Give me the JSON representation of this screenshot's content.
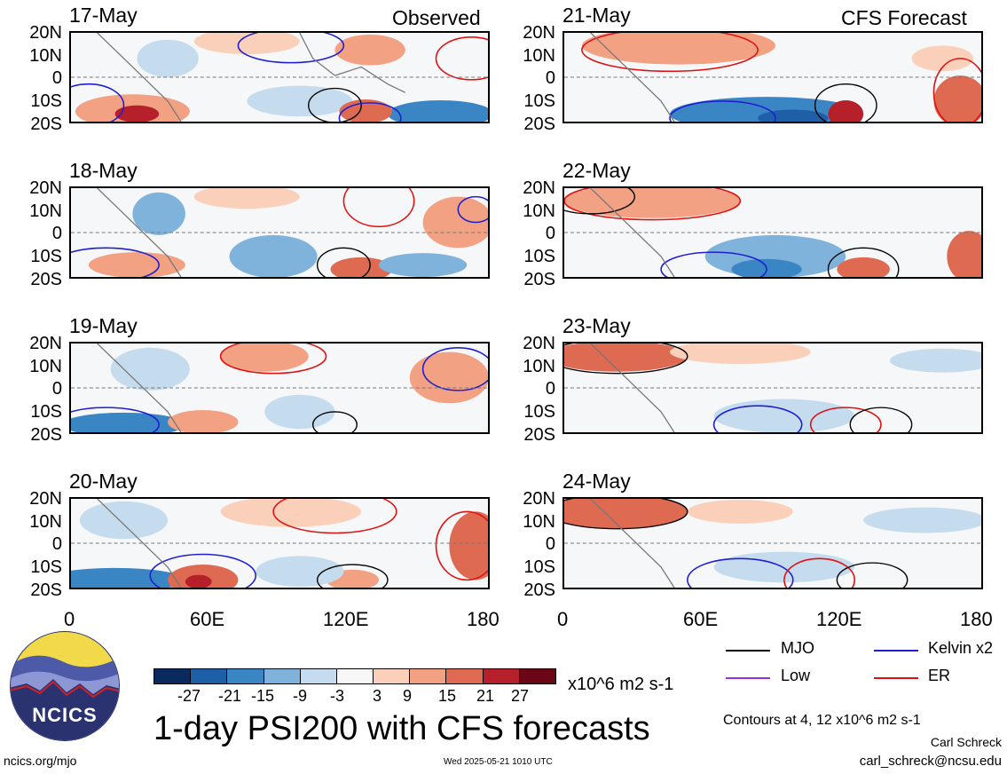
{
  "panels": [
    {
      "date": "17-May",
      "tag": "Observed"
    },
    {
      "date": "18-May",
      "tag": ""
    },
    {
      "date": "19-May",
      "tag": ""
    },
    {
      "date": "20-May",
      "tag": ""
    },
    {
      "date": "21-May",
      "tag": "CFS Forecast"
    },
    {
      "date": "22-May",
      "tag": ""
    },
    {
      "date": "23-May",
      "tag": ""
    },
    {
      "date": "24-May",
      "tag": ""
    }
  ],
  "lat_labels": [
    "20N",
    "10N",
    "0",
    "10S",
    "20S"
  ],
  "lon_labels": [
    "0",
    "60E",
    "120E",
    "180"
  ],
  "colorbar": {
    "labels": [
      "-27",
      "-21",
      "-15",
      "-9",
      "-3",
      "3",
      "9",
      "15",
      "21",
      "27"
    ],
    "colors": [
      "#0a2a5e",
      "#1f5fa8",
      "#3a85c4",
      "#7fb3dc",
      "#c5dcef",
      "#f7f7f7",
      "#fbd0ba",
      "#f3a183",
      "#de6a52",
      "#b5202b",
      "#6a0616"
    ],
    "units": "x10^6 m2 s-1"
  },
  "legend": [
    {
      "label": "MJO",
      "color": "#000000"
    },
    {
      "label": "Kelvin x2",
      "color": "#1f1fd1"
    },
    {
      "label": "Low",
      "color": "#9b30d9"
    },
    {
      "label": "ER",
      "color": "#e01010"
    }
  ],
  "logo_text": "NCICS",
  "title": "1-day PSI200 with CFS forecasts",
  "contour_note": "Contours at 4, 12 x10^6 m2 s-1",
  "author": "Carl Schreck",
  "email": "carl_schreck@ncsu.edu",
  "site": "ncics.org/mjo",
  "timestamp": "Wed 2025-05-21 1010 UTC"
}
